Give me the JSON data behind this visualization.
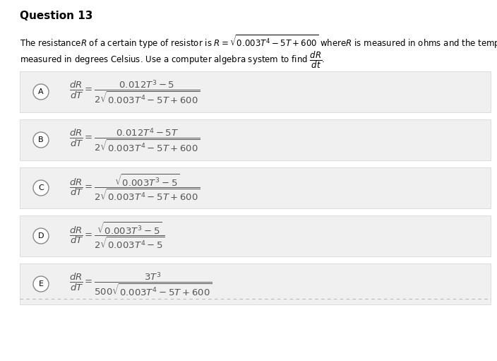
{
  "title": "Question 13",
  "background_color": "#ffffff",
  "panel_color": "#f0f0f0",
  "panel_edge_color": "#d8d8d8",
  "title_color": "#000000",
  "text_color": "#000000",
  "formula_color": "#555555",
  "circle_edge_color": "#888888",
  "dash_color": "#bbbbbb",
  "title_fontsize": 11,
  "text_fontsize": 8.5,
  "formula_fontsize": 9.5,
  "label_fontsize": 8,
  "options": [
    {
      "label": "A",
      "numerator": "0.012T^3 - 5",
      "denominator": "2\\sqrt{0.003T^4 - 5T + 600}"
    },
    {
      "label": "B",
      "numerator": "0.012T^4 - 5T",
      "denominator": "2\\sqrt{0.003T^4 - 5T + 600}"
    },
    {
      "label": "C",
      "numerator": "\\sqrt{0.003T^3 - 5}",
      "denominator": "2\\sqrt{0.003T^4 - 5T + 600}"
    },
    {
      "label": "D",
      "numerator": "\\sqrt{0.003T^3 - 5}",
      "denominator": "2\\sqrt{0.003T^4 - 5}"
    },
    {
      "label": "E",
      "numerator": "3T^3",
      "denominator": "500\\sqrt{0.003T^4 - 5T + 600}"
    }
  ]
}
